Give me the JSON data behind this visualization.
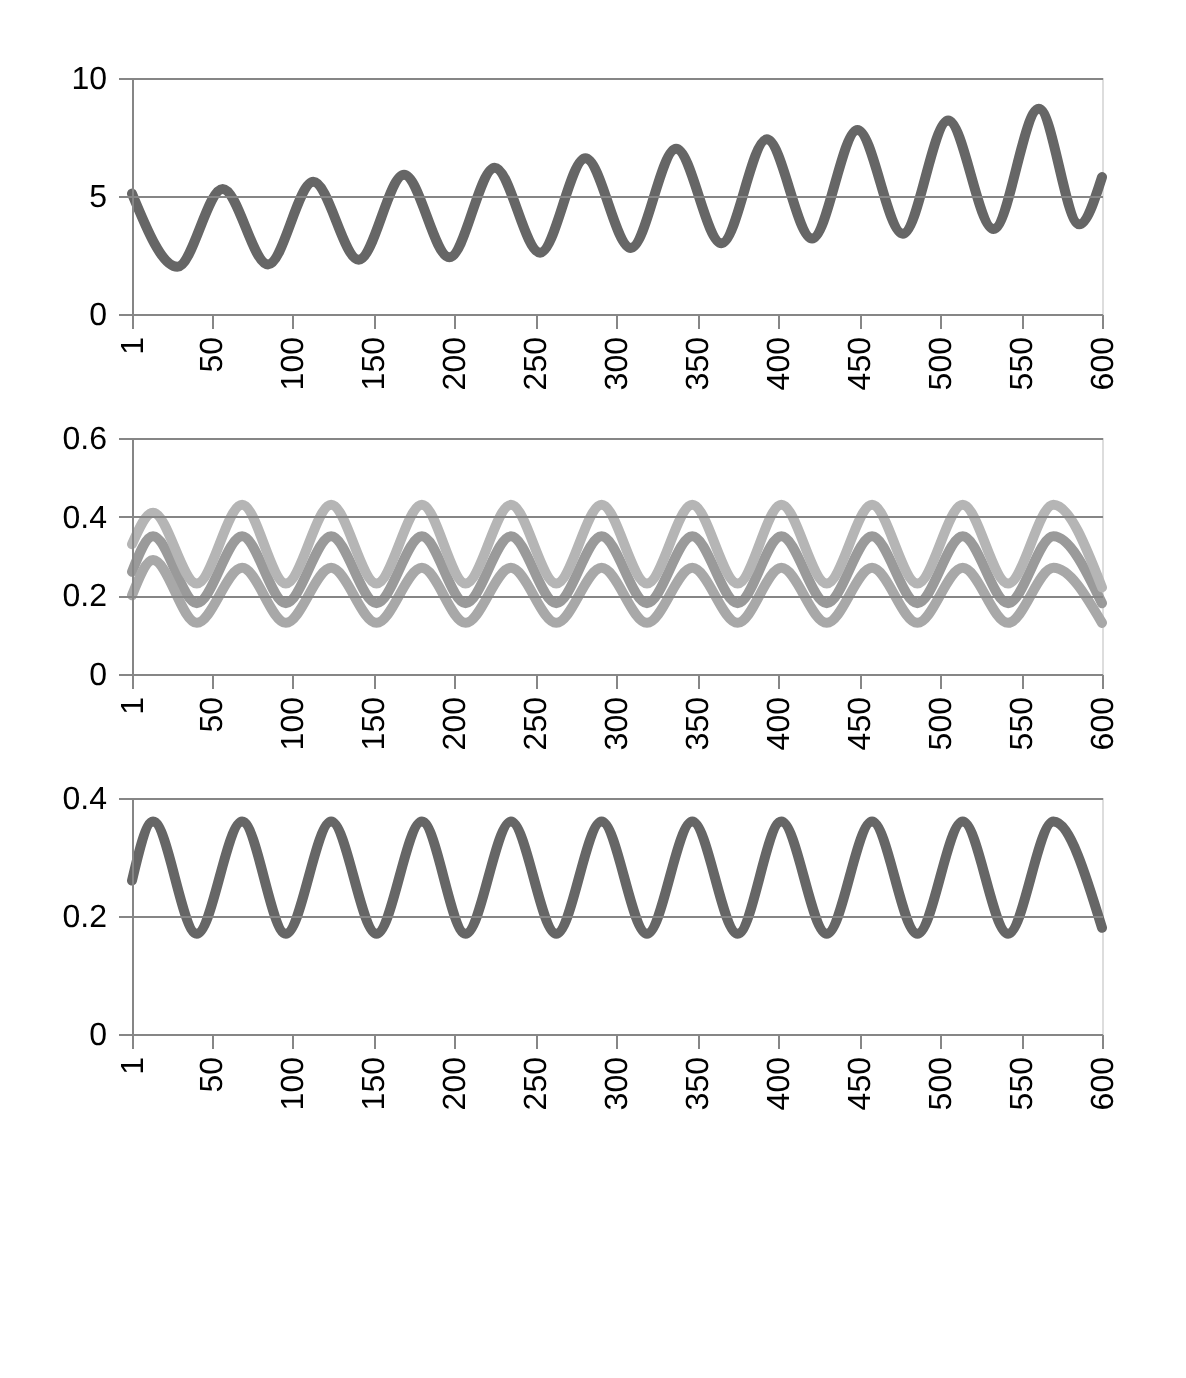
{
  "chart_data": [
    {
      "type": "line",
      "x": [
        1,
        29,
        57,
        85,
        113,
        141,
        169,
        197,
        225,
        253,
        281,
        309,
        337,
        365,
        393,
        421,
        449,
        477,
        505,
        533,
        561,
        586,
        600
      ],
      "xlim": [
        1,
        600
      ],
      "xticks": [
        1,
        50,
        100,
        150,
        200,
        250,
        300,
        350,
        400,
        450,
        500,
        550,
        600
      ],
      "ylim": [
        0,
        10
      ],
      "yticks": [
        0,
        5,
        10
      ],
      "grid": "y",
      "line_style": "solid",
      "series": [
        {
          "color": "#666666",
          "values": [
            5.1,
            2.0,
            5.3,
            2.1,
            5.6,
            2.3,
            5.9,
            2.4,
            6.2,
            2.6,
            6.6,
            2.8,
            7.0,
            3.0,
            7.4,
            3.2,
            7.8,
            3.4,
            8.2,
            3.6,
            8.7,
            3.8,
            5.8
          ]
        }
      ]
    },
    {
      "type": "line",
      "x": [
        1,
        14,
        41,
        69,
        96,
        124,
        152,
        180,
        207,
        235,
        263,
        291,
        319,
        347,
        375,
        402,
        430,
        458,
        486,
        514,
        542,
        570,
        600
      ],
      "xlim": [
        1,
        600
      ],
      "xticks": [
        1,
        50,
        100,
        150,
        200,
        250,
        300,
        350,
        400,
        450,
        500,
        550,
        600
      ],
      "ylim": [
        0,
        0.6
      ],
      "yticks": [
        0,
        0.2,
        0.4,
        0.6
      ],
      "grid": "y",
      "line_style": "solid",
      "series": [
        {
          "color": "#9a9a9a",
          "values": [
            0.26,
            0.35,
            0.18,
            0.35,
            0.18,
            0.35,
            0.18,
            0.35,
            0.18,
            0.35,
            0.18,
            0.35,
            0.18,
            0.35,
            0.18,
            0.35,
            0.18,
            0.35,
            0.18,
            0.35,
            0.18,
            0.35,
            0.18
          ]
        },
        {
          "color": "#a8a8a8",
          "values": [
            0.2,
            0.29,
            0.13,
            0.27,
            0.13,
            0.27,
            0.13,
            0.27,
            0.13,
            0.27,
            0.13,
            0.27,
            0.13,
            0.27,
            0.13,
            0.27,
            0.13,
            0.27,
            0.13,
            0.27,
            0.13,
            0.27,
            0.13
          ]
        },
        {
          "color": "#b5b5b5",
          "values": [
            0.33,
            0.41,
            0.23,
            0.43,
            0.23,
            0.43,
            0.23,
            0.43,
            0.23,
            0.43,
            0.23,
            0.43,
            0.23,
            0.43,
            0.23,
            0.43,
            0.23,
            0.43,
            0.23,
            0.43,
            0.23,
            0.43,
            0.22
          ]
        }
      ]
    },
    {
      "type": "line",
      "x": [
        1,
        14,
        41,
        69,
        96,
        124,
        152,
        180,
        207,
        235,
        263,
        291,
        319,
        347,
        375,
        402,
        430,
        458,
        486,
        514,
        542,
        570,
        600
      ],
      "xlim": [
        1,
        600
      ],
      "xticks": [
        1,
        50,
        100,
        150,
        200,
        250,
        300,
        350,
        400,
        450,
        500,
        550,
        600
      ],
      "ylim": [
        0,
        0.4
      ],
      "yticks": [
        0,
        0.2,
        0.4
      ],
      "grid": "y",
      "line_style": "solid",
      "series": [
        {
          "color": "#666666",
          "values": [
            0.26,
            0.36,
            0.17,
            0.36,
            0.17,
            0.36,
            0.17,
            0.36,
            0.17,
            0.36,
            0.17,
            0.36,
            0.17,
            0.36,
            0.17,
            0.36,
            0.17,
            0.36,
            0.17,
            0.36,
            0.17,
            0.36,
            0.18
          ]
        }
      ]
    }
  ]
}
